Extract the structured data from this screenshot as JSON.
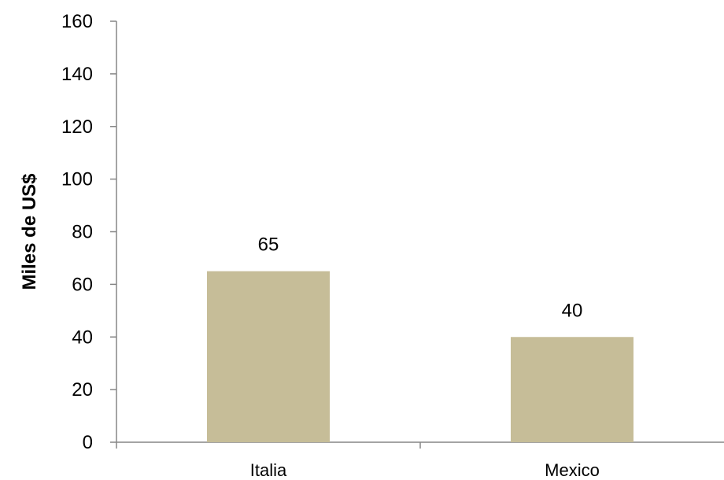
{
  "chart_data": {
    "type": "bar",
    "categories": [
      "Italia",
      "Mexico"
    ],
    "values": [
      65,
      40
    ],
    "data_labels": [
      "65",
      "40"
    ],
    "title": "",
    "xlabel": "",
    "ylabel": "Miles de US$",
    "ylim": [
      0,
      160
    ],
    "yticks": [
      0,
      20,
      40,
      60,
      80,
      100,
      120,
      140,
      160
    ],
    "grid": false,
    "legend": "none",
    "bar_color": "#c6bd98",
    "axis_color": "#868686"
  }
}
